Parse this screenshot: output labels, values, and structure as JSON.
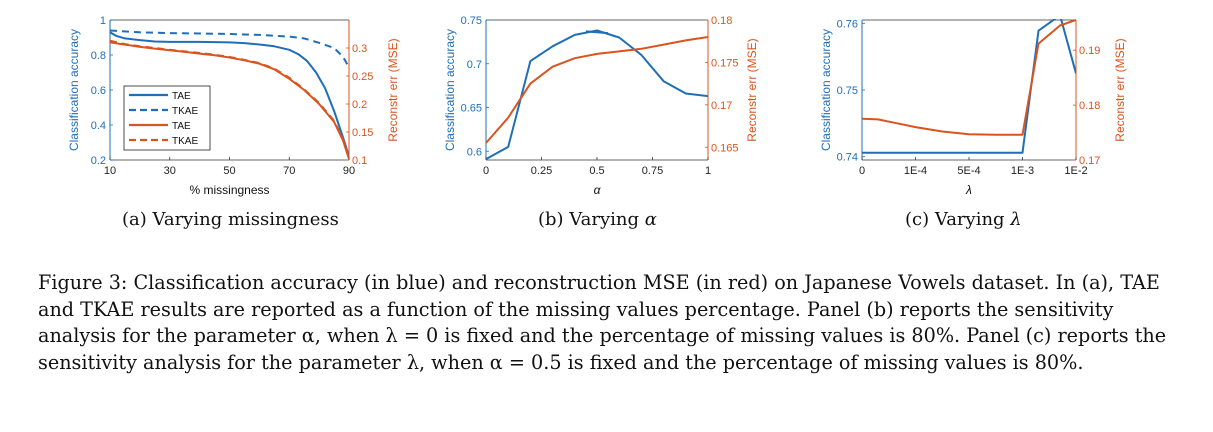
{
  "colors": {
    "blue": "#1f6fb8",
    "red": "#d9541e",
    "axis": "#333333"
  },
  "subcaptions": {
    "a": "(a) Varying missingness",
    "b_prefix": "(b) Varying ",
    "b_sym": "α",
    "c_prefix": "(c) Varying ",
    "c_sym": "λ"
  },
  "caption": "Figure 3: Classification accuracy (in blue) and reconstruction MSE (in red) on Japanese Vowels dataset. In (a), TAE and TKAE results are reported as a function of the missing values percentage. Panel (b) reports the sensitivity analysis for the parameter α, when λ = 0 is fixed and the percentage of missing values is 80%. Panel (c) reports the sensitivity analysis for the parameter λ, when α = 0.5 is fixed and the percentage of missing values is 80%.",
  "chart_data": [
    {
      "type": "line",
      "panel": "a",
      "xlabel": "% missingness",
      "ylabel_left": "Classification accuracy",
      "ylabel_right": "Reconstr err (MSE)",
      "xlim": [
        10,
        90
      ],
      "ylim_left": [
        0.2,
        1
      ],
      "ylim_right": [
        0.1,
        0.35
      ],
      "xticks": [
        10,
        30,
        50,
        70,
        90
      ],
      "xticklabels": [
        "10",
        "30",
        "50",
        "70",
        "90"
      ],
      "yticks_left": [
        0.2,
        0.4,
        0.6,
        0.8,
        1
      ],
      "yticklabels_left": [
        "0.2",
        "0.4",
        "0.6",
        "0.8",
        "1"
      ],
      "yticks_right": [
        0.1,
        0.15,
        0.2,
        0.25,
        0.3
      ],
      "yticklabels_right": [
        "0.1",
        "0.15",
        "0.2",
        "0.25",
        "0.3"
      ],
      "legend_placement": "lower-left",
      "series": [
        {
          "name": "TAE",
          "axis": "left",
          "color": "blue",
          "dash": false,
          "x": [
            10,
            12,
            15,
            20,
            25,
            30,
            35,
            40,
            45,
            50,
            55,
            60,
            65,
            70,
            73,
            76,
            79,
            82,
            85,
            88,
            90
          ],
          "y": [
            0.93,
            0.91,
            0.895,
            0.885,
            0.877,
            0.875,
            0.875,
            0.875,
            0.874,
            0.872,
            0.868,
            0.86,
            0.85,
            0.83,
            0.805,
            0.765,
            0.7,
            0.61,
            0.48,
            0.33,
            0.22
          ]
        },
        {
          "name": "TKAE",
          "axis": "left",
          "color": "blue",
          "dash": true,
          "x": [
            10,
            20,
            30,
            40,
            50,
            60,
            70,
            75,
            80,
            85,
            88,
            90
          ],
          "y": [
            0.94,
            0.93,
            0.925,
            0.923,
            0.92,
            0.915,
            0.905,
            0.895,
            0.87,
            0.84,
            0.79,
            0.73
          ]
        },
        {
          "name": "TAE",
          "axis": "right",
          "color": "red",
          "dash": false,
          "x": [
            10,
            15,
            20,
            25,
            30,
            35,
            40,
            45,
            50,
            55,
            60,
            65,
            70,
            75,
            80,
            85,
            88,
            90
          ],
          "y": [
            0.31,
            0.306,
            0.302,
            0.299,
            0.296,
            0.293,
            0.29,
            0.287,
            0.283,
            0.278,
            0.272,
            0.262,
            0.245,
            0.225,
            0.2,
            0.168,
            0.135,
            0.102
          ]
        },
        {
          "name": "TKAE",
          "axis": "right",
          "color": "red",
          "dash": true,
          "x": [
            10,
            15,
            20,
            25,
            30,
            35,
            40,
            45,
            50,
            55,
            60,
            65,
            70,
            75,
            80,
            85,
            88,
            90
          ],
          "y": [
            0.313,
            0.307,
            0.303,
            0.3,
            0.297,
            0.294,
            0.291,
            0.288,
            0.284,
            0.279,
            0.273,
            0.263,
            0.247,
            0.226,
            0.202,
            0.17,
            0.137,
            0.104
          ]
        }
      ]
    },
    {
      "type": "line",
      "panel": "b",
      "xlabel": "α",
      "ylabel_left": "Classification accuracy",
      "ylabel_right": "Reconstr err (MSE)",
      "xlim": [
        0,
        1
      ],
      "ylim_left": [
        0.59,
        0.75
      ],
      "ylim_right": [
        0.1635,
        0.18
      ],
      "xticks": [
        0,
        0.25,
        0.5,
        0.75,
        1
      ],
      "xticklabels": [
        "0",
        "0.25",
        "0.5",
        "0.75",
        "1"
      ],
      "yticks_left": [
        0.6,
        0.65,
        0.7,
        0.75
      ],
      "yticklabels_left": [
        "0.6",
        "0.65",
        "0.7",
        "0.75"
      ],
      "yticks_right": [
        0.165,
        0.17,
        0.175,
        0.18
      ],
      "yticklabels_right": [
        "0.165",
        "0.17",
        "0.175",
        "0.18"
      ],
      "series": [
        {
          "axis": "left",
          "color": "blue",
          "dash": false,
          "x": [
            0,
            0.1,
            0.2,
            0.3,
            0.4,
            0.5,
            0.6,
            0.7,
            0.8,
            0.9,
            1.0
          ],
          "y": [
            0.591,
            0.605,
            0.703,
            0.72,
            0.733,
            0.738,
            0.73,
            0.71,
            0.68,
            0.666,
            0.663
          ]
        },
        {
          "axis": "left",
          "color": "blue",
          "dash": false,
          "x": [
            0.45,
            0.55
          ],
          "y": [
            0.737,
            0.735
          ]
        },
        {
          "axis": "right",
          "color": "red",
          "dash": false,
          "x": [
            0,
            0.1,
            0.2,
            0.3,
            0.4,
            0.5,
            0.6,
            0.7,
            0.8,
            0.9,
            1.0
          ],
          "y": [
            0.1655,
            0.1685,
            0.1725,
            0.1745,
            0.1755,
            0.176,
            0.1763,
            0.1766,
            0.1771,
            0.1776,
            0.178
          ]
        }
      ]
    },
    {
      "type": "line",
      "panel": "c",
      "xlabel": "λ",
      "ylabel_left": "Classification accuracy",
      "ylabel_right": "Reconstr err (MSE)",
      "x_scale": "categorical-log",
      "xticks": [
        0,
        1,
        2,
        3,
        4
      ],
      "xticklabels": [
        "0",
        "1E-4",
        "5E-4",
        "1E-3",
        "1E-2"
      ],
      "xlim": [
        0,
        4
      ],
      "ylim_left": [
        0.7395,
        0.7605
      ],
      "ylim_right": [
        0.17,
        0.1955
      ],
      "yticks_left": [
        0.74,
        0.75,
        0.76
      ],
      "yticklabels_left": [
        "0.74",
        "0.75",
        "0.76"
      ],
      "yticks_right": [
        0.17,
        0.18,
        0.19
      ],
      "yticklabels_right": [
        "0.17",
        "0.18",
        "0.19"
      ],
      "series": [
        {
          "axis": "left",
          "color": "blue",
          "dash": false,
          "x": [
            0,
            0.5,
            1,
            1.5,
            2,
            2.5,
            3,
            3.3,
            3.7,
            4.0
          ],
          "y": [
            0.7406,
            0.7406,
            0.7406,
            0.7406,
            0.7406,
            0.7406,
            0.7406,
            0.7589,
            0.7612,
            0.7525
          ]
        },
        {
          "axis": "right",
          "color": "red",
          "dash": false,
          "x": [
            0,
            0.3,
            0.6,
            1.0,
            1.5,
            2.0,
            2.5,
            3.0,
            3.3,
            3.7,
            4.0
          ],
          "y": [
            0.1775,
            0.1774,
            0.1768,
            0.176,
            0.1752,
            0.1747,
            0.1746,
            0.1746,
            0.1912,
            0.1945,
            0.1955
          ]
        }
      ]
    }
  ]
}
